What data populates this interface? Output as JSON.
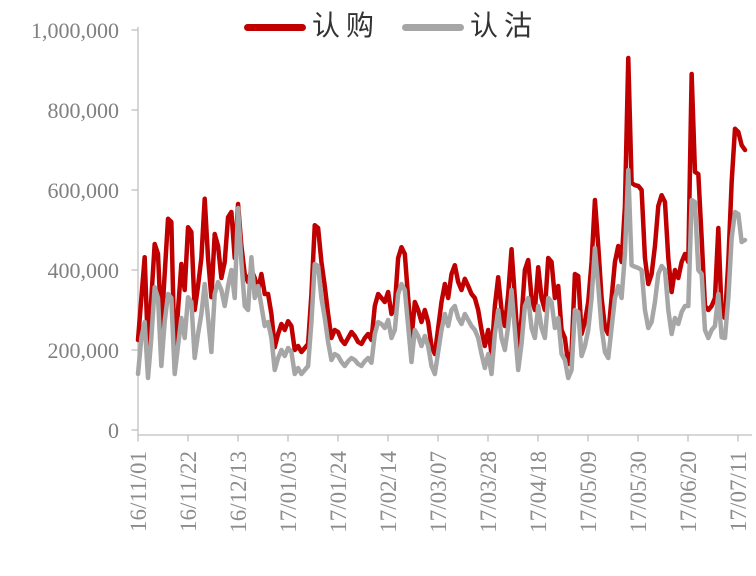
{
  "chart_data": {
    "type": "line",
    "title": "",
    "xlabel": "",
    "ylabel": "",
    "grid": false,
    "legend_position": "top-center",
    "ylim": [
      0,
      1000000
    ],
    "y_tick_labels": [
      "0",
      "200,000",
      "400,000",
      "600,000",
      "800,000",
      "1,000,000"
    ],
    "x_tick_labels": [
      "16/11/01",
      "16/11/22",
      "16/12/13",
      "17/01/03",
      "17/01/24",
      "17/02/14",
      "17/03/07",
      "17/03/28",
      "17/04/18",
      "17/05/09",
      "17/05/30",
      "17/06/20",
      "17/07/11"
    ],
    "axis_color": "#bfbfbf",
    "tick_label_color": "#808080",
    "series": [
      {
        "name": "认购",
        "color": "#c00000",
        "values": [
          225000,
          330000,
          432000,
          200000,
          330000,
          465000,
          440000,
          250000,
          390000,
          528000,
          520000,
          175000,
          300000,
          415000,
          350000,
          507000,
          495000,
          300000,
          360000,
          430000,
          578000,
          430000,
          332000,
          490000,
          460000,
          380000,
          420000,
          532000,
          545000,
          430000,
          565000,
          460000,
          390000,
          370000,
          400000,
          380000,
          350000,
          390000,
          340000,
          340000,
          290000,
          207000,
          240000,
          265000,
          250000,
          272000,
          260000,
          200000,
          210000,
          195000,
          205000,
          215000,
          340000,
          512000,
          505000,
          420000,
          360000,
          290000,
          230000,
          250000,
          245000,
          225000,
          215000,
          230000,
          245000,
          235000,
          220000,
          215000,
          230000,
          240000,
          225000,
          310000,
          340000,
          330000,
          320000,
          345000,
          290000,
          310000,
          430000,
          457000,
          440000,
          330000,
          227000,
          320000,
          300000,
          270000,
          300000,
          270000,
          210000,
          190000,
          255000,
          320000,
          365000,
          330000,
          390000,
          412000,
          370000,
          350000,
          378000,
          360000,
          340000,
          330000,
          300000,
          250000,
          210000,
          250000,
          190000,
          310000,
          382000,
          300000,
          260000,
          340000,
          452000,
          330000,
          200000,
          280000,
          400000,
          425000,
          330000,
          300000,
          407000,
          330000,
          300000,
          430000,
          420000,
          330000,
          360000,
          250000,
          230000,
          165000,
          195000,
          390000,
          385000,
          240000,
          270000,
          320000,
          420000,
          575000,
          460000,
          330000,
          257000,
          240000,
          330000,
          420000,
          460000,
          420000,
          560000,
          930000,
          618000,
          612000,
          610000,
          600000,
          430000,
          365000,
          390000,
          460000,
          560000,
          587000,
          570000,
          430000,
          345000,
          400000,
          380000,
          420000,
          440000,
          420000,
          890000,
          645000,
          640000,
          480000,
          310000,
          300000,
          310000,
          330000,
          505000,
          290000,
          280000,
          420000,
          620000,
          753000,
          745000,
          712000,
          700000
        ]
      },
      {
        "name": "认沽",
        "color": "#a6a6a6",
        "values": [
          140000,
          230000,
          270000,
          130000,
          230000,
          357000,
          330000,
          160000,
          270000,
          340000,
          330000,
          140000,
          210000,
          280000,
          230000,
          332000,
          320000,
          180000,
          240000,
          290000,
          365000,
          280000,
          195000,
          340000,
          370000,
          350000,
          310000,
          360000,
          400000,
          330000,
          555000,
          420000,
          310000,
          300000,
          432000,
          330000,
          360000,
          310000,
          260000,
          270000,
          230000,
          150000,
          180000,
          200000,
          185000,
          205000,
          195000,
          140000,
          155000,
          140000,
          150000,
          160000,
          270000,
          415000,
          410000,
          330000,
          280000,
          220000,
          175000,
          190000,
          185000,
          170000,
          160000,
          172000,
          180000,
          175000,
          165000,
          160000,
          172000,
          180000,
          168000,
          240000,
          270000,
          265000,
          255000,
          275000,
          230000,
          250000,
          340000,
          365000,
          350000,
          260000,
          170000,
          250000,
          235000,
          210000,
          235000,
          210000,
          160000,
          140000,
          195000,
          250000,
          290000,
          260000,
          300000,
          310000,
          280000,
          265000,
          290000,
          275000,
          260000,
          250000,
          230000,
          190000,
          155000,
          190000,
          140000,
          240000,
          300000,
          230000,
          200000,
          260000,
          350000,
          250000,
          150000,
          215000,
          310000,
          330000,
          255000,
          230000,
          310000,
          255000,
          230000,
          330000,
          320000,
          255000,
          280000,
          190000,
          175000,
          130000,
          150000,
          300000,
          295000,
          185000,
          210000,
          250000,
          330000,
          455000,
          360000,
          255000,
          195000,
          180000,
          255000,
          330000,
          360000,
          330000,
          440000,
          650000,
          412000,
          408000,
          405000,
          400000,
          300000,
          255000,
          270000,
          320000,
          390000,
          410000,
          400000,
          300000,
          240000,
          280000,
          265000,
          295000,
          310000,
          310000,
          575000,
          570000,
          400000,
          390000,
          250000,
          230000,
          250000,
          260000,
          340000,
          232000,
          230000,
          330000,
          480000,
          545000,
          540000,
          470000,
          475000
        ]
      }
    ]
  }
}
